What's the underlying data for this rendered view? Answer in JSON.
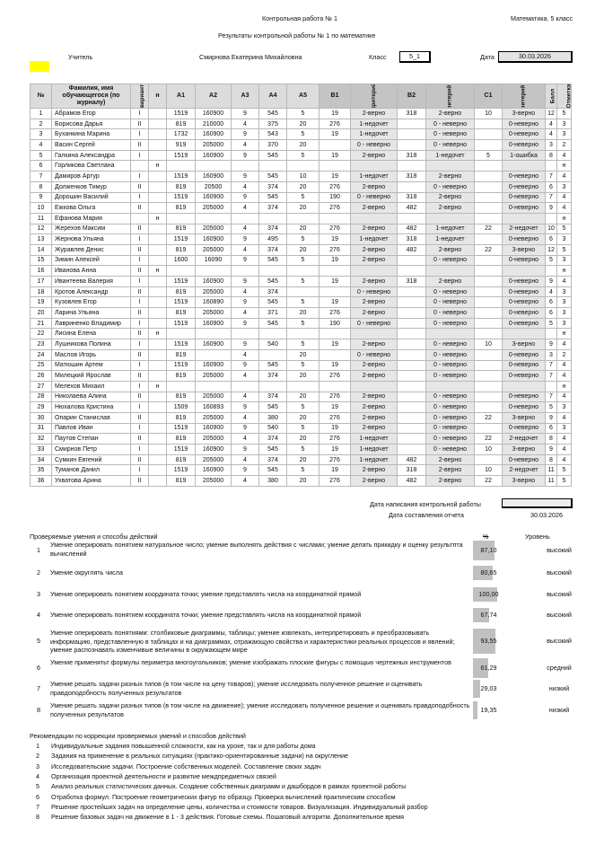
{
  "header": {
    "title": "Контрольная работа № 1",
    "subject": "Математика. 5 класс",
    "subtitle": "Результаты контрольной работы № 1 по математике",
    "teacher_label": "Учитель",
    "teacher": "Смирнова Екатерина Михайловна",
    "class_label": "Класс",
    "class": "5_1",
    "date_label": "Дата",
    "date": "30.03.2026"
  },
  "table": {
    "columns": [
      "№",
      "Фамилия, имя обучающегося (по журналу)",
      "вариант",
      "н",
      "А1",
      "А2",
      "А3",
      "А4",
      "А5",
      "В1",
      "критерий",
      "В2",
      "критерий 2",
      "С1",
      "критерий 3",
      "Балл",
      "Отметка"
    ],
    "rows": [
      [
        "1",
        "Абрамов Егор",
        "I",
        "",
        "1519",
        "160900",
        "9",
        "545",
        "5",
        "19",
        "2-верно",
        "318",
        "2-верно",
        "10",
        "3-верно",
        "12",
        "5"
      ],
      [
        "2",
        "Борисова Дарья",
        "II",
        "",
        "819",
        "210000",
        "4",
        "375",
        "20",
        "276",
        "1-недочет",
        "",
        "0 - неверно",
        "",
        "0-неверно",
        "4",
        "3"
      ],
      [
        "3",
        "Буханкина Марина",
        "I",
        "",
        "1732",
        "160900",
        "9",
        "543",
        "5",
        "19",
        "1-недочет",
        "",
        "0 - неверно",
        "",
        "0-неверно",
        "4",
        "3"
      ],
      [
        "4",
        "Васин Сергей",
        "II",
        "",
        "919",
        "205000",
        "4",
        "370",
        "20",
        "",
        "0 - неверно",
        "",
        "0 - неверно",
        "",
        "0-неверно",
        "3",
        "2"
      ],
      [
        "5",
        "Галкина Александра",
        "I",
        "",
        "1519",
        "160900",
        "9",
        "545",
        "5",
        "19",
        "2-верно",
        "318",
        "1-недочет",
        "5",
        "1-ошибка",
        "8",
        "4"
      ],
      [
        "6",
        "Горликова Светлана",
        "",
        "н",
        "",
        "",
        "",
        "",
        "",
        "",
        "",
        "",
        "",
        "",
        "",
        "",
        "н"
      ],
      [
        "7",
        "Дамиров Артур",
        "I",
        "",
        "1519",
        "160900",
        "9",
        "545",
        "10",
        "19",
        "1-недочет",
        "318",
        "2-верно",
        "",
        "0-неверно",
        "7",
        "4"
      ],
      [
        "8",
        "Долженков Тимур",
        "II",
        "",
        "819",
        "20500",
        "4",
        "374",
        "20",
        "276",
        "2-верно",
        "",
        "0 - неверно",
        "",
        "0-неверно",
        "6",
        "3"
      ],
      [
        "9",
        "Дорошин Василий",
        "I",
        "",
        "1519",
        "160900",
        "9",
        "545",
        "5",
        "190",
        "0 - неверно",
        "318",
        "2-верно",
        "",
        "0-неверно",
        "7",
        "4"
      ],
      [
        "10",
        "Ежкова Ольга",
        "II",
        "",
        "819",
        "205000",
        "4",
        "374",
        "20",
        "276",
        "2-верно",
        "482",
        "2-верно",
        "",
        "0-неверно",
        "9",
        "4"
      ],
      [
        "11",
        "Ефанова Мария",
        "",
        "н",
        "",
        "",
        "",
        "",
        "",
        "",
        "",
        "",
        "",
        "",
        "",
        "",
        "н"
      ],
      [
        "12",
        "Жерехов Максим",
        "II",
        "",
        "819",
        "205000",
        "4",
        "374",
        "20",
        "276",
        "2-верно",
        "482",
        "1-недочет",
        "22",
        "2-недочет",
        "10",
        "5"
      ],
      [
        "13",
        "Жернова Ульяна",
        "I",
        "",
        "1519",
        "160900",
        "9",
        "495",
        "5",
        "19",
        "1-недочет",
        "318",
        "1-недочет",
        "",
        "0-неверно",
        "6",
        "3"
      ],
      [
        "14",
        "Журавлев Денис",
        "II",
        "",
        "819",
        "205000",
        "4",
        "374",
        "20",
        "276",
        "2-верно",
        "482",
        "2-верно",
        "22",
        "3-верно",
        "12",
        "5"
      ],
      [
        "15",
        "Зимин Алексей",
        "I",
        "",
        "1600",
        "16090",
        "9",
        "545",
        "5",
        "19",
        "2-верно",
        "",
        "0 - неверно",
        "",
        "0-неверно",
        "5",
        "3"
      ],
      [
        "16",
        "Иванова Анна",
        "II",
        "н",
        "",
        "",
        "",
        "",
        "",
        "",
        "",
        "",
        "",
        "",
        "",
        "",
        "н"
      ],
      [
        "17",
        "Ивантеева Валерия",
        "I",
        "",
        "1519",
        "160900",
        "9",
        "545",
        "5",
        "19",
        "2-верно",
        "318",
        "2-верно",
        "",
        "0-неверно",
        "9",
        "4"
      ],
      [
        "18",
        "Кротов Александр",
        "II",
        "",
        "819",
        "205000",
        "4",
        "374",
        "",
        "",
        "0 - неверно",
        "",
        "0 - неверно",
        "",
        "0-неверно",
        "4",
        "3"
      ],
      [
        "19",
        "Кузовлев Егор",
        "I",
        "",
        "1519",
        "160890",
        "9",
        "545",
        "5",
        "19",
        "2-верно",
        "",
        "0 - неверно",
        "",
        "0-неверно",
        "6",
        "3"
      ],
      [
        "20",
        "Ларина Ульяна",
        "II",
        "",
        "819",
        "205000",
        "4",
        "371",
        "20",
        "276",
        "2-верно",
        "",
        "0 - неверно",
        "",
        "0-неверно",
        "6",
        "3"
      ],
      [
        "21",
        "Лавриненко Владимир",
        "I",
        "",
        "1519",
        "160900",
        "9",
        "545",
        "5",
        "190",
        "0 - неверно",
        "",
        "0 - неверно",
        "",
        "0-неверно",
        "5",
        "3"
      ],
      [
        "22",
        "Лисина Елена",
        "II",
        "н",
        "",
        "",
        "",
        "",
        "",
        "",
        "",
        "",
        "",
        "",
        "",
        "",
        "н"
      ],
      [
        "23",
        "Лушникова Полина",
        "I",
        "",
        "1519",
        "160900",
        "9",
        "540",
        "5",
        "19",
        "2-верно",
        "",
        "0 - неверно",
        "10",
        "3-верно",
        "9",
        "4"
      ],
      [
        "24",
        "Маслов Игорь",
        "II",
        "",
        "819",
        "",
        "4",
        "",
        "20",
        "",
        "0 - неверно",
        "",
        "0 - неверно",
        "",
        "0-неверно",
        "3",
        "2"
      ],
      [
        "25",
        "Матюшин Артем",
        "I",
        "",
        "1519",
        "160900",
        "9",
        "545",
        "5",
        "19",
        "2-верно",
        "",
        "0 - неверно",
        "",
        "0-неверно",
        "7",
        "4"
      ],
      [
        "26",
        "Милецкий Ярослав",
        "II",
        "",
        "819",
        "205000",
        "4",
        "374",
        "20",
        "276",
        "2-верно",
        "",
        "0 - неверно",
        "",
        "0-неверно",
        "7",
        "4"
      ],
      [
        "27",
        "Мелехов Михаил",
        "I",
        "н",
        "",
        "",
        "",
        "",
        "",
        "",
        "",
        "",
        "",
        "",
        "",
        "",
        "н"
      ],
      [
        "28",
        "Николаева Алина",
        "II",
        "",
        "819",
        "205000",
        "4",
        "374",
        "20",
        "276",
        "2-верно",
        "",
        "0 - неверно",
        "",
        "0-неверно",
        "7",
        "4"
      ],
      [
        "29",
        "Нюхалова Кристина",
        "I",
        "",
        "1509",
        "160893",
        "9",
        "545",
        "5",
        "19",
        "2-верно",
        "",
        "0 - неверно",
        "",
        "0-неверно",
        "5",
        "3"
      ],
      [
        "30",
        "Опарин Станислав",
        "II",
        "",
        "819",
        "205000",
        "4",
        "380",
        "20",
        "276",
        "2-верно",
        "",
        "0 - неверно",
        "22",
        "3-верно",
        "9",
        "4"
      ],
      [
        "31",
        "Павлов Иван",
        "I",
        "",
        "1519",
        "160900",
        "9",
        "540",
        "5",
        "19",
        "2-верно",
        "",
        "0 - неверно",
        "",
        "0-неверно",
        "6",
        "3"
      ],
      [
        "32",
        "Паутов Степан",
        "II",
        "",
        "819",
        "205000",
        "4",
        "374",
        "20",
        "276",
        "1-недочет",
        "",
        "0 - неверно",
        "22",
        "2-недочет",
        "8",
        "4"
      ],
      [
        "33",
        "Смирнов Петр",
        "I",
        "",
        "1519",
        "160900",
        "9",
        "545",
        "5",
        "19",
        "1-недочет",
        "",
        "0 - неверно",
        "10",
        "3-верно",
        "9",
        "4"
      ],
      [
        "34",
        "Сумкин Евгений",
        "II",
        "",
        "819",
        "205000",
        "4",
        "374",
        "20",
        "276",
        "1-недочет",
        "482",
        "2-верно",
        "",
        "0-неверно",
        "8",
        "4"
      ],
      [
        "35",
        "Туманов Данил",
        "I",
        "",
        "1519",
        "160900",
        "9",
        "545",
        "5",
        "19",
        "2-верно",
        "318",
        "2-верно",
        "10",
        "2-недочет",
        "11",
        "5"
      ],
      [
        "36",
        "Ухватова Арина",
        "II",
        "",
        "819",
        "205000",
        "4",
        "380",
        "20",
        "276",
        "2-верно",
        "482",
        "2-верно",
        "22",
        "3-верно",
        "11",
        "5"
      ]
    ]
  },
  "dates": {
    "written_label": "Дата написания контрольной работы",
    "written": "",
    "report_label": "Дата составления отчета",
    "report": "30.03.2026"
  },
  "skills": {
    "title": "Проверяемые умения и способы действий",
    "pct_label": "%",
    "level_label": "Уровень",
    "items": [
      {
        "n": "1",
        "text": "Умение оперировать понятием натуральное число; умение выполнять действия с числами; умение делать прикидку и оценку результпта вычислений",
        "pct": "87,10",
        "value": 87.1,
        "level": "высокий"
      },
      {
        "n": "2",
        "text": "Умение округлять числа",
        "pct": "80,65",
        "value": 80.65,
        "level": "высокий"
      },
      {
        "n": "3",
        "text": "Умение оперировать понятием координата точки; умение представлять числа на координатной прямой",
        "pct": "100,00",
        "value": 100,
        "level": "высокий"
      },
      {
        "n": "4",
        "text": "Умение  оперировать понятием координата точки; умение представлять числа на координатной прямой",
        "pct": "67,74",
        "value": 67.74,
        "level": "высокий"
      },
      {
        "n": "5",
        "text": "Умение оперировать понятиями: столбиковые диаграммы, таблицы; умение извлекать, интерпретировать и преобразовывать информацию, представленную в таблицах и на диаграммах, отражающую свойства и характеристики реальных процессов и явлений; умение распознавать изменчивые величины в окружающем мире",
        "pct": "93,55",
        "value": 93.55,
        "level": "высокий"
      },
      {
        "n": "6",
        "text": "Умение применятьт формулы периметра многоугольников; умение изображать плоские фигуры с помощью чертежных инструментов",
        "pct": "61,29",
        "value": 61.29,
        "level": "средний"
      },
      {
        "n": "7",
        "text": "Умение решать задачи разных типов (в том числе на цену товаров); умение исследовать полученное решение и оценивать правдоподобность полученных результатов",
        "pct": "29,03",
        "value": 29.03,
        "level": "низкий"
      },
      {
        "n": "8",
        "text": "Умение решать задачи разных типов (в том числе на движение); умение исследовать полученное решение и оценивать правдоподобность полученных результатов",
        "pct": "19,35",
        "value": 19.35,
        "level": "низкий"
      }
    ]
  },
  "recommendations": {
    "title": "Рекомендации по коррекции проверяемых умений и способов действий",
    "items": [
      {
        "n": "1",
        "text": "Индивидуальные задания повышенной сложности, как на уроке, так и для работы дома"
      },
      {
        "n": "2",
        "text": "Задания на применение в реальных ситуациях (практико-ориентированные задачи) на округление"
      },
      {
        "n": "3",
        "text": "Исследовательские задачи. Построение собственных моделей. Составление своих задач"
      },
      {
        "n": "4",
        "text": "Организация проектной деятельности и развитие междпредметных связей"
      },
      {
        "n": "5",
        "text": "Анализ реальных статистических данных. Создание собственных диаграмм и дашбордов в рамках проектной работы"
      },
      {
        "n": "6",
        "text": "Отработка формул. Построение геометрических фигур по образцу. Проверка вычислений практическим способом"
      },
      {
        "n": "7",
        "text": "Решение простейших задач на определение цены, количества и стоимости товаров. Визуализация. Индивидуальный разбор"
      },
      {
        "n": "8",
        "text": "Решение базовых задач на движение в 1 - 3 действия. Готовые схемы. Пошаговый алгоритм. Дополнительное время"
      }
    ]
  }
}
